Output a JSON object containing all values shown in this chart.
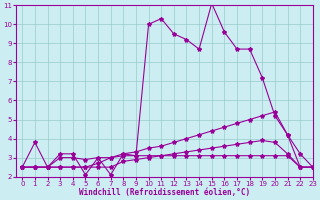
{
  "xlabel": "Windchill (Refroidissement éolien,°C)",
  "background_color": "#cceef2",
  "line_color": "#990099",
  "grid_color": "#99cccc",
  "x_values": [
    0,
    1,
    2,
    3,
    4,
    5,
    6,
    7,
    8,
    9,
    10,
    11,
    12,
    13,
    14,
    15,
    16,
    17,
    18,
    19,
    20,
    21,
    22,
    23
  ],
  "series1": [
    2.5,
    3.8,
    2.5,
    3.2,
    3.2,
    2.1,
    3.0,
    2.1,
    3.2,
    3.1,
    10.0,
    10.3,
    9.5,
    9.2,
    8.7,
    11.1,
    9.6,
    8.7,
    8.7,
    7.2,
    5.2,
    4.2,
    2.5,
    2.5
  ],
  "series2": [
    2.5,
    2.5,
    2.5,
    2.5,
    2.5,
    2.5,
    2.7,
    3.0,
    3.2,
    3.3,
    3.5,
    3.6,
    3.8,
    4.0,
    4.2,
    4.4,
    4.6,
    4.8,
    5.0,
    5.2,
    5.4,
    4.2,
    3.2,
    2.5
  ],
  "series3": [
    2.5,
    2.5,
    2.5,
    3.0,
    3.0,
    2.9,
    3.0,
    3.0,
    3.1,
    3.1,
    3.1,
    3.1,
    3.1,
    3.1,
    3.1,
    3.1,
    3.1,
    3.1,
    3.1,
    3.1,
    3.1,
    3.1,
    2.5,
    2.5
  ],
  "series4": [
    2.5,
    2.5,
    2.5,
    2.5,
    2.5,
    2.5,
    2.5,
    2.5,
    2.8,
    2.9,
    3.0,
    3.1,
    3.2,
    3.3,
    3.4,
    3.5,
    3.6,
    3.7,
    3.8,
    3.9,
    3.8,
    3.2,
    2.5,
    2.5
  ],
  "ylim": [
    2,
    11
  ],
  "xlim": [
    -0.5,
    23
  ],
  "yticks": [
    2,
    3,
    4,
    5,
    6,
    7,
    8,
    9,
    10,
    11
  ],
  "xticks": [
    0,
    1,
    2,
    3,
    4,
    5,
    6,
    7,
    8,
    9,
    10,
    11,
    12,
    13,
    14,
    15,
    16,
    17,
    18,
    19,
    20,
    21,
    22,
    23
  ],
  "marker": "*",
  "markersize": 3,
  "linewidth": 0.8
}
